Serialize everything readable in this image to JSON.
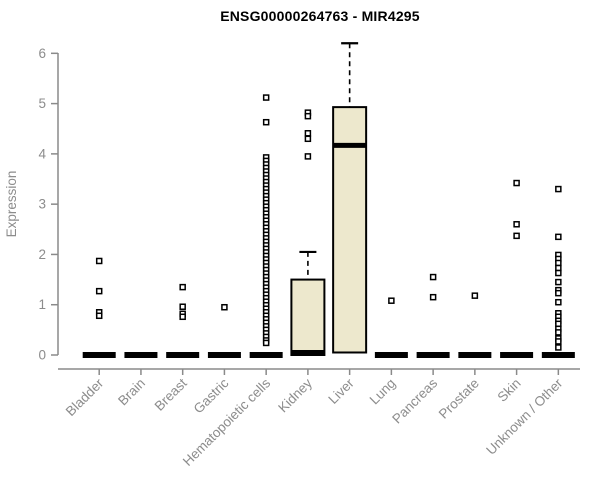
{
  "figure": {
    "title": "ENSG00000264763 - MIR4295"
  },
  "chart_data": {
    "type": "boxplot",
    "title": "ENSG00000264763 - MIR4295",
    "xlabel": "",
    "ylabel": "Expression",
    "ylim": [
      0,
      6
    ],
    "yticks": [
      0,
      1,
      2,
      3,
      4,
      5,
      6
    ],
    "grid": false,
    "legend": "none",
    "colors": {
      "box_fill": "#EDE8CD",
      "box_stroke": "#000000",
      "marker_stroke": "#000000",
      "axis_color": "#8a8a8a",
      "tick_label_color": "#8c8c8c",
      "title_color": "#000000"
    },
    "categories": [
      "Bladder",
      "Brain",
      "Breast",
      "Gastric",
      "Hematopoietic cells",
      "Kidney",
      "Liver",
      "Lung",
      "Pancreas",
      "Prostate",
      "Skin",
      "Unknown / Other"
    ],
    "series": [
      {
        "category": "Bladder",
        "q1": 0,
        "median": 0,
        "q3": 0,
        "whisker_low": 0,
        "whisker_high": 0,
        "outliers": [
          1.87,
          1.27,
          0.85,
          0.78
        ]
      },
      {
        "category": "Brain",
        "q1": 0,
        "median": 0,
        "q3": 0,
        "whisker_low": 0,
        "whisker_high": 0,
        "outliers": []
      },
      {
        "category": "Breast",
        "q1": 0,
        "median": 0,
        "q3": 0,
        "whisker_low": 0,
        "whisker_high": 0,
        "outliers": [
          1.35,
          0.96,
          0.82,
          0.76
        ]
      },
      {
        "category": "Gastric",
        "q1": 0,
        "median": 0,
        "q3": 0,
        "whisker_low": 0,
        "whisker_high": 0,
        "outliers": [
          0.95
        ]
      },
      {
        "category": "Hematopoietic cells",
        "q1": 0,
        "median": 0,
        "q3": 0,
        "whisker_low": 0,
        "whisker_high": 0,
        "outliers": [
          5.12,
          4.63,
          3.93,
          3.86,
          3.79,
          3.72,
          3.65,
          3.58,
          3.51,
          3.44,
          3.37,
          3.3,
          3.23,
          3.16,
          3.09,
          3.02,
          2.95,
          2.88,
          2.81,
          2.74,
          2.67,
          2.6,
          2.53,
          2.46,
          2.39,
          2.32,
          2.25,
          2.18,
          2.11,
          2.04,
          1.97,
          1.9,
          1.83,
          1.76,
          1.69,
          1.62,
          1.55,
          1.48,
          1.41,
          1.34,
          1.27,
          1.2,
          1.13,
          1.06,
          0.99,
          0.92,
          0.85,
          0.78,
          0.71,
          0.64,
          0.57,
          0.5,
          0.43,
          0.36,
          0.29,
          0.24
        ]
      },
      {
        "category": "Kidney",
        "q1": 0,
        "median": 0.05,
        "q3": 1.5,
        "whisker_low": 0,
        "whisker_high": 2.05,
        "outliers": [
          4.82,
          4.75,
          4.41,
          4.3,
          3.95
        ]
      },
      {
        "category": "Liver",
        "q1": 0.05,
        "median": 4.17,
        "q3": 4.93,
        "whisker_low": 0.05,
        "whisker_high": 6.2,
        "outliers": []
      },
      {
        "category": "Lung",
        "q1": 0,
        "median": 0,
        "q3": 0,
        "whisker_low": 0,
        "whisker_high": 0,
        "outliers": [
          1.08
        ]
      },
      {
        "category": "Pancreas",
        "q1": 0,
        "median": 0,
        "q3": 0,
        "whisker_low": 0,
        "whisker_high": 0,
        "outliers": [
          1.55,
          1.15
        ]
      },
      {
        "category": "Prostate",
        "q1": 0,
        "median": 0,
        "q3": 0,
        "whisker_low": 0,
        "whisker_high": 0,
        "outliers": [
          1.18
        ]
      },
      {
        "category": "Skin",
        "q1": 0,
        "median": 0,
        "q3": 0,
        "whisker_low": 0,
        "whisker_high": 0,
        "outliers": [
          3.42,
          2.6,
          2.37
        ]
      },
      {
        "category": "Unknown / Other",
        "q1": 0,
        "median": 0,
        "q3": 0,
        "whisker_low": 0,
        "whisker_high": 0,
        "outliers": [
          3.3,
          2.35,
          1.99,
          1.91,
          1.83,
          1.73,
          1.63,
          1.45,
          1.29,
          1.23,
          1.05,
          0.83,
          0.76,
          0.68,
          0.62,
          0.52,
          0.45,
          0.33,
          0.27,
          0.15
        ]
      }
    ]
  }
}
